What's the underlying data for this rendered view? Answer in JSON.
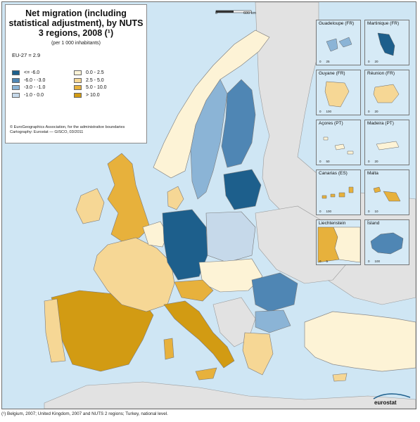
{
  "title": "Net migration (including statistical adjustment), by NUTS 3 regions, 2008 (¹)",
  "subtitle": "(per 1 000 inhabitants)",
  "eu_average": "EU-27 = 2.9",
  "legend": [
    {
      "label": "<= -6.0",
      "color": "#1d5f8c"
    },
    {
      "label": "-6.0 - -3.0",
      "color": "#4f86b4"
    },
    {
      "label": "-3.0 - -1.0",
      "color": "#8bb4d6"
    },
    {
      "label": "-1.0 - 0.0",
      "color": "#c6d9ea"
    },
    {
      "label": "0.0 - 2.5",
      "color": "#fdf3d6"
    },
    {
      "label": "2.5 - 5.0",
      "color": "#f6d795"
    },
    {
      "label": "5.0 - 10.0",
      "color": "#e7b13c"
    },
    {
      "label": "> 10.0",
      "color": "#d29b13"
    }
  ],
  "credits": [
    "© EuroGeographics Association, for the administrative boundaries",
    "Cartography: Eurostat — GISCO, 03/2011"
  ],
  "scale": {
    "start": "0",
    "end": "600 km"
  },
  "insets": [
    {
      "name": "Guadeloupe (FR)",
      "ticks": [
        "0",
        "25"
      ],
      "color": "#8bb4d6"
    },
    {
      "name": "Martinique (FR)",
      "ticks": [
        "0",
        "20"
      ],
      "color": "#1d5f8c"
    },
    {
      "name": "Guyane (FR)",
      "ticks": [
        "0",
        "100"
      ],
      "color": "#f6d795"
    },
    {
      "name": "Réunion (FR)",
      "ticks": [
        "0",
        "20"
      ],
      "color": "#f6d795"
    },
    {
      "name": "Açores (PT)",
      "ticks": [
        "0",
        "50"
      ],
      "color": "#fdf3d6"
    },
    {
      "name": "Madeira (PT)",
      "ticks": [
        "0",
        "20"
      ],
      "color": "#fdf3d6"
    },
    {
      "name": "Canarias (ES)",
      "ticks": [
        "0",
        "100"
      ],
      "color": "#e7b13c"
    },
    {
      "name": "Malta",
      "ticks": [
        "0",
        "10"
      ],
      "color": "#e7b13c"
    },
    {
      "name": "Liechtenstein",
      "ticks": [
        "0",
        "5"
      ],
      "color": "#e7b13c"
    },
    {
      "name": "Ísland",
      "ticks": [
        "0",
        "100"
      ],
      "color": "#4f86b4"
    }
  ],
  "footnote": "(¹) Belgium, 2007; United Kingdom, 2007 and NUTS 2 regions; Turkey, national level.",
  "logo": "eurostat",
  "colors": {
    "sea": "#cfe6f4",
    "non_eu": "#e2e2e2",
    "border": "#7a7a7a"
  }
}
